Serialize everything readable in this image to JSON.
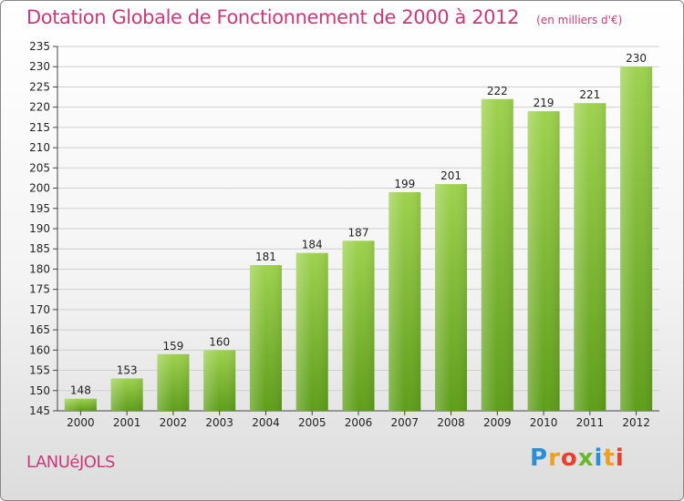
{
  "title": "Dotation Globale de Fonctionnement de 2000 à 2012",
  "unit_note": "(en milliers d'€)",
  "commune": "LANUéJOLS",
  "logo": {
    "letters": [
      "P",
      "r",
      "o",
      "x",
      "i",
      "t",
      "i"
    ],
    "colors": [
      "#2a8fd6",
      "#f0a020",
      "#e8402a",
      "#6ab82a",
      "#2a8fd6",
      "#f0a020",
      "#e8402a"
    ]
  },
  "colors": {
    "bar_top": "#9ed24e",
    "bar_bottom": "#5e9e1a",
    "accent": "#c73a7a"
  },
  "chart_data": {
    "type": "bar",
    "categories": [
      "2000",
      "2001",
      "2002",
      "2003",
      "2004",
      "2005",
      "2006",
      "2007",
      "2008",
      "2009",
      "2010",
      "2011",
      "2012"
    ],
    "values": [
      148,
      153,
      159,
      160,
      181,
      184,
      187,
      199,
      201,
      222,
      219,
      221,
      230
    ],
    "ylim": [
      145,
      235
    ],
    "yticks": [
      145,
      150,
      155,
      160,
      165,
      170,
      175,
      180,
      185,
      190,
      195,
      200,
      205,
      210,
      215,
      220,
      225,
      230,
      235
    ],
    "grid": true,
    "xlabel": "",
    "ylabel": ""
  }
}
